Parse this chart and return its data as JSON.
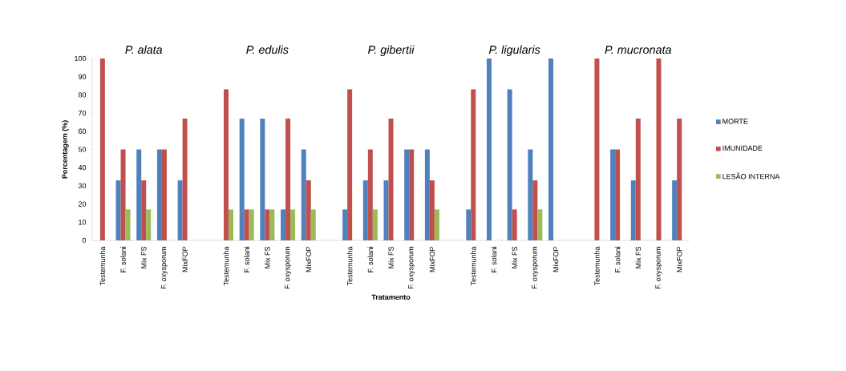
{
  "chart_data": {
    "type": "bar",
    "xlabel": "Tratamento",
    "ylabel": "Porcentagem (%)",
    "categories": [
      "Testemunha",
      "F. solani",
      "Mix FS",
      "F. oxysporum",
      "MixFOP",
      null,
      "Testemunha",
      "F. solani",
      "Mix FS",
      "F. oxysporum",
      "MixFOP",
      null,
      "Testemunha",
      "F. solani",
      "Mix FS",
      "F. oxysporum",
      "MixFOP",
      null,
      "Testemunha",
      "F. solani",
      "Mix FS",
      "F. oxysporum",
      "MixFOP",
      null,
      "Testemunha",
      "F. solani",
      "Mix FS",
      "F. oxysporum",
      "MixFOP"
    ],
    "series": [
      {
        "name": "MORTE",
        "color": "#4f81bd",
        "values": [
          0,
          33,
          50,
          50,
          33,
          null,
          0,
          67,
          67,
          17,
          50,
          null,
          17,
          33,
          33,
          50,
          50,
          null,
          17,
          100,
          83,
          50,
          100,
          null,
          0,
          50,
          33,
          0,
          33
        ]
      },
      {
        "name": "IMUNIDADE",
        "color": "#c0504d",
        "values": [
          100,
          50,
          33,
          50,
          67,
          null,
          83,
          17,
          17,
          67,
          33,
          null,
          83,
          50,
          67,
          50,
          33,
          null,
          83,
          0,
          17,
          33,
          0,
          null,
          100,
          50,
          67,
          100,
          67
        ]
      },
      {
        "name": "LESÃO INTERNA",
        "color": "#9bbb59",
        "values": [
          0,
          17,
          17,
          0,
          0,
          null,
          17,
          17,
          17,
          17,
          17,
          null,
          0,
          17,
          0,
          0,
          17,
          null,
          0,
          0,
          0,
          17,
          0,
          null,
          0,
          0,
          0,
          0,
          0
        ]
      }
    ],
    "ylim": [
      0,
      100
    ],
    "yticks": [
      0,
      10,
      20,
      30,
      40,
      50,
      60,
      70,
      80,
      90,
      100
    ],
    "legend": "right",
    "annotations": [
      "P. alata",
      "P. edulis",
      "P. gibertii",
      "P. ligularis",
      "P. mucronata"
    ]
  }
}
